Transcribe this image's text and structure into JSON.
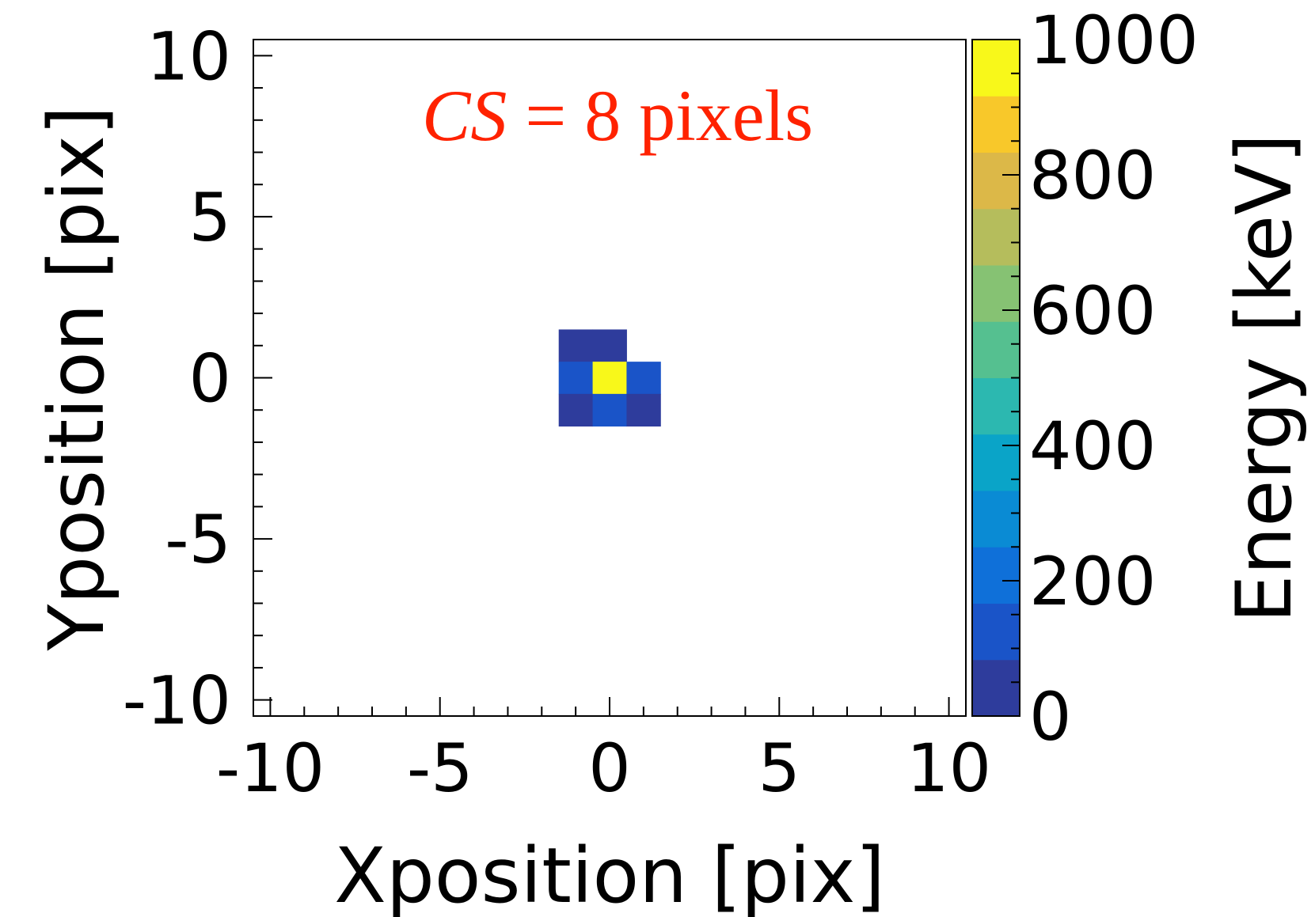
{
  "chart_data": {
    "type": "heatmap",
    "title": "",
    "xlabel": "Xposition [pix]",
    "ylabel": "Yposition [pix]",
    "xlim": [
      -10.5,
      10.5
    ],
    "ylim": [
      -10.5,
      10.5
    ],
    "x_ticks": [
      "-10",
      "-5",
      "0",
      "5",
      "10"
    ],
    "y_ticks": [
      "10",
      "5",
      "0",
      "-5",
      "-10"
    ],
    "grid": false,
    "annotation": {
      "italic": "CS",
      "rest": " = 8 pixels"
    },
    "colorbar": {
      "label": "Energy [keV]",
      "range": [
        0,
        1000
      ],
      "ticks": [
        "0",
        "200",
        "400",
        "600",
        "800",
        "1000"
      ],
      "colors": [
        "#2e3c9c",
        "#1a54c8",
        "#0f70d9",
        "#0a8bd4",
        "#0aa4c8",
        "#2cb8b0",
        "#55c090",
        "#86c273",
        "#b5bd5c",
        "#dcb848",
        "#f8c82a",
        "#f8f81a"
      ]
    },
    "cells": [
      {
        "x": -1,
        "y": 1,
        "value": 30
      },
      {
        "x": 0,
        "y": 1,
        "value": 70
      },
      {
        "x": -1,
        "y": 0,
        "value": 150
      },
      {
        "x": 0,
        "y": 0,
        "value": 1000
      },
      {
        "x": 1,
        "y": 0,
        "value": 90
      },
      {
        "x": -1,
        "y": -1,
        "value": 30
      },
      {
        "x": 0,
        "y": -1,
        "value": 150
      },
      {
        "x": 1,
        "y": -1,
        "value": 35
      }
    ]
  }
}
